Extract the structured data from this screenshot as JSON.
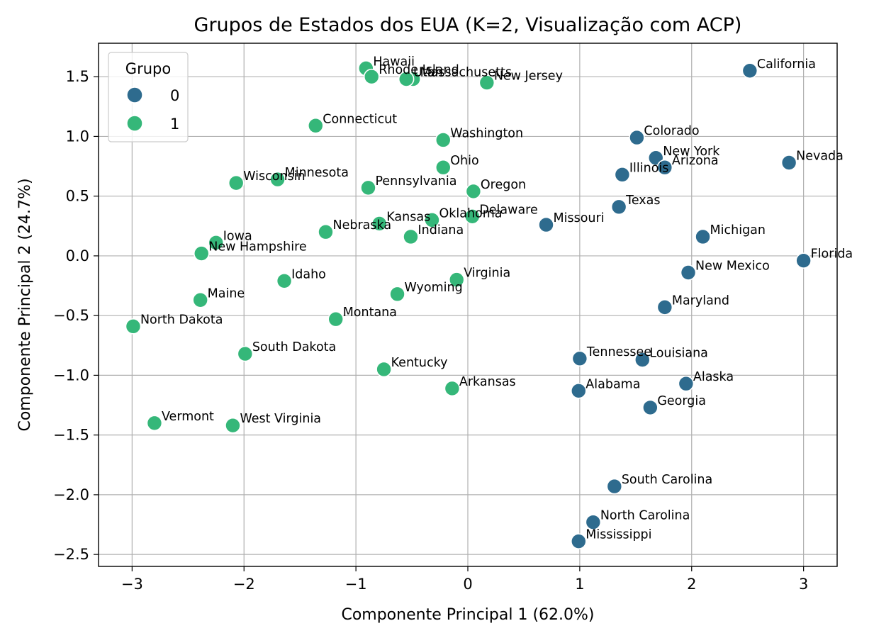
{
  "chart_data": {
    "type": "scatter",
    "title": "Grupos de Estados dos EUA (K=2, Visualização com ACP)",
    "xlabel": "Componente Principal 1 (62.0%)",
    "ylabel": "Componente Principal 2 (24.7%)",
    "xlim": [
      -3.3,
      3.3
    ],
    "ylim": [
      -2.6,
      1.78
    ],
    "xticks": [
      -3,
      -2,
      -1,
      0,
      1,
      2,
      3
    ],
    "xtick_labels": [
      "−3",
      "−2",
      "−1",
      "0",
      "1",
      "2",
      "3"
    ],
    "yticks": [
      -2.5,
      -2.0,
      -1.5,
      -1.0,
      -0.5,
      0.0,
      0.5,
      1.0,
      1.5
    ],
    "ytick_labels": [
      "−2.5",
      "−2.0",
      "−1.5",
      "−1.0",
      "−0.5",
      "0.0",
      "0.5",
      "1.0",
      "1.5"
    ],
    "grid": true,
    "legend": {
      "title": "Grupo",
      "placement": "top-left",
      "entries": [
        {
          "label": "0",
          "color": "#2e6b8e"
        },
        {
          "label": "1",
          "color": "#35b779"
        }
      ]
    },
    "series": [
      {
        "group": "0",
        "color": "#2e6b8e",
        "points": [
          {
            "label": "California",
            "x": 2.52,
            "y": 1.55
          },
          {
            "label": "Nevada",
            "x": 2.87,
            "y": 0.78
          },
          {
            "label": "Colorado",
            "x": 1.51,
            "y": 0.99
          },
          {
            "label": "New York",
            "x": 1.68,
            "y": 0.82
          },
          {
            "label": "Arizona",
            "x": 1.76,
            "y": 0.74
          },
          {
            "label": "Illinois",
            "x": 1.38,
            "y": 0.68
          },
          {
            "label": "Texas",
            "x": 1.35,
            "y": 0.41
          },
          {
            "label": "Missouri",
            "x": 0.7,
            "y": 0.26
          },
          {
            "label": "Michigan",
            "x": 2.1,
            "y": 0.16
          },
          {
            "label": "Florida",
            "x": 3.0,
            "y": -0.04
          },
          {
            "label": "New Mexico",
            "x": 1.97,
            "y": -0.14
          },
          {
            "label": "Maryland",
            "x": 1.76,
            "y": -0.43
          },
          {
            "label": "Tennessee",
            "x": 1.0,
            "y": -0.86
          },
          {
            "label": "Louisiana",
            "x": 1.56,
            "y": -0.87
          },
          {
            "label": "Alaska",
            "x": 1.95,
            "y": -1.07
          },
          {
            "label": "Alabama",
            "x": 0.99,
            "y": -1.13
          },
          {
            "label": "Georgia",
            "x": 1.63,
            "y": -1.27
          },
          {
            "label": "South Carolina",
            "x": 1.31,
            "y": -1.93
          },
          {
            "label": "North Carolina",
            "x": 1.12,
            "y": -2.23
          },
          {
            "label": "Mississippi",
            "x": 0.99,
            "y": -2.39
          }
        ]
      },
      {
        "group": "1",
        "color": "#35b779",
        "points": [
          {
            "label": "Hawaii",
            "x": -0.91,
            "y": 1.57
          },
          {
            "label": "Rhode Island",
            "x": -0.86,
            "y": 1.5
          },
          {
            "label": "Massachusetts",
            "x": -0.49,
            "y": 1.48
          },
          {
            "label": "Utah",
            "x": -0.55,
            "y": 1.48
          },
          {
            "label": "New Jersey",
            "x": 0.17,
            "y": 1.45
          },
          {
            "label": "Connecticut",
            "x": -1.36,
            "y": 1.09
          },
          {
            "label": "Washington",
            "x": -0.22,
            "y": 0.97
          },
          {
            "label": "Ohio",
            "x": -0.22,
            "y": 0.74
          },
          {
            "label": "Minnesota",
            "x": -1.7,
            "y": 0.64
          },
          {
            "label": "Wisconsin",
            "x": -2.07,
            "y": 0.61
          },
          {
            "label": "Pennsylvania",
            "x": -0.89,
            "y": 0.57
          },
          {
            "label": "Oregon",
            "x": 0.05,
            "y": 0.54
          },
          {
            "label": "Delaware",
            "x": 0.04,
            "y": 0.33
          },
          {
            "label": "Oklahoma",
            "x": -0.32,
            "y": 0.3
          },
          {
            "label": "Kansas",
            "x": -0.79,
            "y": 0.27
          },
          {
            "label": "Nebraska",
            "x": -1.27,
            "y": 0.2
          },
          {
            "label": "Indiana",
            "x": -0.51,
            "y": 0.16
          },
          {
            "label": "Iowa",
            "x": -2.25,
            "y": 0.11
          },
          {
            "label": "New Hampshire",
            "x": -2.38,
            "y": 0.02
          },
          {
            "label": "Idaho",
            "x": -1.64,
            "y": -0.21
          },
          {
            "label": "Virginia",
            "x": -0.1,
            "y": -0.2
          },
          {
            "label": "Wyoming",
            "x": -0.63,
            "y": -0.32
          },
          {
            "label": "Maine",
            "x": -2.39,
            "y": -0.37
          },
          {
            "label": "Montana",
            "x": -1.18,
            "y": -0.53
          },
          {
            "label": "North Dakota",
            "x": -2.99,
            "y": -0.59
          },
          {
            "label": "South Dakota",
            "x": -1.99,
            "y": -0.82
          },
          {
            "label": "Kentucky",
            "x": -0.75,
            "y": -0.95
          },
          {
            "label": "Arkansas",
            "x": -0.14,
            "y": -1.11
          },
          {
            "label": "Vermont",
            "x": -2.8,
            "y": -1.4
          },
          {
            "label": "West Virginia",
            "x": -2.1,
            "y": -1.42
          }
        ]
      }
    ]
  }
}
